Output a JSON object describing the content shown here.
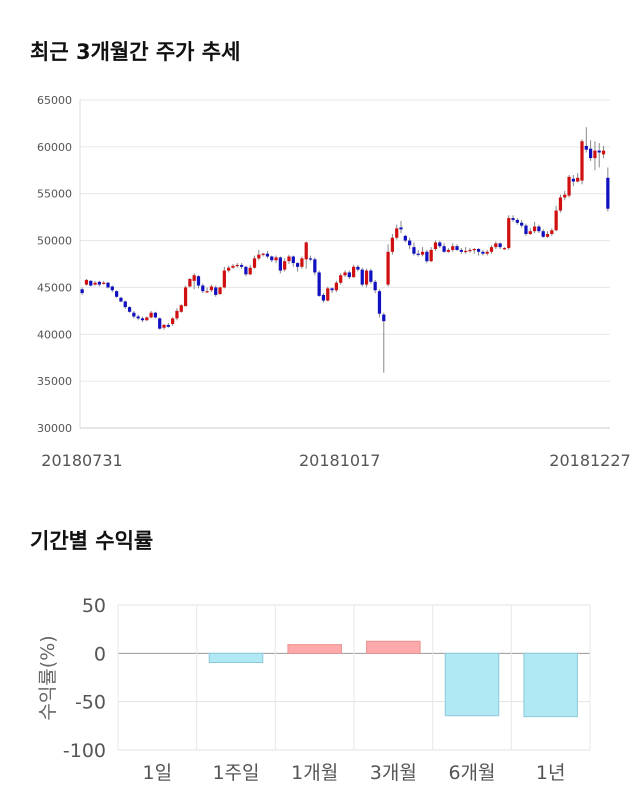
{
  "sections": {
    "price_title": "최근 3개월간 주가 추세",
    "returns_title": "기간별 수익률"
  },
  "chart_data": [
    {
      "type": "candlestick",
      "title": "최근 3개월간 주가 추세",
      "ylim": [
        30000,
        65000
      ],
      "y_ticks": [
        "65000",
        "60000",
        "55000",
        "50000",
        "45000",
        "40000",
        "35000",
        "30000"
      ],
      "x_tick_labels": [
        "20180731",
        "20181017",
        "20181227"
      ],
      "grid": true,
      "colors": {
        "up": "#d01010",
        "down": "#1010c0",
        "wick": "#888888"
      },
      "candles": [
        [
          44800,
          44400,
          45000,
          44200
        ],
        [
          45300,
          45800,
          45900,
          45200
        ],
        [
          45700,
          45200,
          45800,
          45100
        ],
        [
          45300,
          45500,
          45700,
          45200
        ],
        [
          45600,
          45300,
          45700,
          45100
        ],
        [
          45400,
          45500,
          45700,
          45300
        ],
        [
          45500,
          45000,
          45600,
          44900
        ],
        [
          45100,
          44700,
          45200,
          44500
        ],
        [
          44600,
          44000,
          44700,
          43900
        ],
        [
          43900,
          43500,
          44000,
          43400
        ],
        [
          43500,
          42900,
          43600,
          42700
        ],
        [
          42900,
          42400,
          43000,
          42300
        ],
        [
          42300,
          41900,
          42500,
          41700
        ],
        [
          41900,
          41700,
          42100,
          41500
        ],
        [
          41700,
          41500,
          41900,
          41300
        ],
        [
          41500,
          41800,
          41900,
          41400
        ],
        [
          41800,
          42300,
          42500,
          41700
        ],
        [
          42300,
          41800,
          42400,
          41700
        ],
        [
          41700,
          40600,
          41800,
          40500
        ],
        [
          40700,
          41000,
          41100,
          40500
        ],
        [
          41000,
          40800,
          41200,
          40700
        ],
        [
          41100,
          41700,
          41800,
          40900
        ],
        [
          41700,
          42500,
          42800,
          41500
        ],
        [
          42400,
          43100,
          43200,
          42300
        ],
        [
          43000,
          45000,
          45200,
          43000
        ],
        [
          45100,
          45900,
          46000,
          45000
        ],
        [
          45700,
          46300,
          46500,
          44800
        ],
        [
          46200,
          45200,
          46300,
          44900
        ],
        [
          45200,
          44600,
          45400,
          44400
        ],
        [
          44600,
          44600,
          45000,
          44400
        ],
        [
          44700,
          45100,
          45300,
          44500
        ],
        [
          45000,
          44200,
          45200,
          44000
        ],
        [
          44300,
          45000,
          45100,
          44200
        ],
        [
          45000,
          46800,
          47200,
          44900
        ],
        [
          46800,
          47100,
          47300,
          46600
        ],
        [
          47100,
          47300,
          47500,
          47000
        ],
        [
          47300,
          47400,
          47600,
          47100
        ],
        [
          47400,
          47200,
          47600,
          47000
        ],
        [
          47200,
          46400,
          47300,
          46200
        ],
        [
          46400,
          47100,
          47400,
          46300
        ],
        [
          47100,
          48100,
          48400,
          47000
        ],
        [
          48100,
          48500,
          49000,
          47900
        ],
        [
          48500,
          48600,
          48700,
          48300
        ],
        [
          48600,
          48300,
          48900,
          48100
        ],
        [
          48300,
          47900,
          48400,
          47700
        ],
        [
          47900,
          48200,
          48400,
          47600
        ],
        [
          48200,
          46800,
          48300,
          46500
        ],
        [
          46900,
          47800,
          48100,
          46700
        ],
        [
          47800,
          48300,
          48500,
          47500
        ],
        [
          48300,
          47600,
          48400,
          47200
        ],
        [
          47600,
          47200,
          47700,
          46700
        ],
        [
          47200,
          48100,
          48300,
          47000
        ],
        [
          48000,
          49800,
          49900,
          47000
        ],
        [
          48100,
          48000,
          48400,
          47800
        ],
        [
          48000,
          46600,
          48200,
          46300
        ],
        [
          46600,
          44100,
          46800,
          44000
        ],
        [
          44200,
          43600,
          44400,
          43400
        ],
        [
          43600,
          44900,
          45100,
          43500
        ],
        [
          44900,
          44700,
          45000,
          44400
        ],
        [
          44700,
          45500,
          45700,
          44500
        ],
        [
          45500,
          46300,
          46500,
          45300
        ],
        [
          46300,
          46600,
          46800,
          46100
        ],
        [
          46600,
          46100,
          46800,
          45900
        ],
        [
          46100,
          47200,
          47400,
          46000
        ],
        [
          47200,
          46900,
          47400,
          46700
        ],
        [
          46900,
          45300,
          47100,
          45100
        ],
        [
          45300,
          46800,
          47000,
          45000
        ],
        [
          46800,
          45600,
          47000,
          45400
        ],
        [
          45600,
          44700,
          45800,
          44400
        ],
        [
          44600,
          42200,
          44800,
          41800
        ],
        [
          42100,
          41400,
          42300,
          35900
        ],
        [
          45300,
          48800,
          49600,
          45100
        ],
        [
          48800,
          50300,
          50700,
          48500
        ],
        [
          50300,
          51300,
          51700,
          50100
        ],
        [
          51400,
          51200,
          52100,
          50800
        ],
        [
          50500,
          50000,
          50600,
          49800
        ],
        [
          50000,
          49500,
          50300,
          49100
        ],
        [
          49300,
          48600,
          49800,
          48400
        ],
        [
          48600,
          48500,
          49000,
          48300
        ],
        [
          48500,
          48800,
          49300,
          48300
        ],
        [
          48800,
          47800,
          49000,
          47600
        ],
        [
          47800,
          49000,
          49300,
          47700
        ],
        [
          49100,
          49800,
          50000,
          48900
        ],
        [
          49800,
          49400,
          50000,
          49200
        ],
        [
          49400,
          48800,
          49700,
          48700
        ],
        [
          48800,
          49000,
          49200,
          48700
        ],
        [
          49000,
          49400,
          49700,
          48800
        ],
        [
          49400,
          49000,
          49600,
          48900
        ],
        [
          49000,
          48800,
          49200,
          48600
        ],
        [
          48800,
          48900,
          49300,
          48600
        ],
        [
          48900,
          49000,
          49200,
          48700
        ],
        [
          49000,
          49100,
          49200,
          48600
        ],
        [
          49100,
          48800,
          49200,
          48400
        ],
        [
          48800,
          48600,
          49000,
          48400
        ],
        [
          48600,
          48800,
          49000,
          48400
        ],
        [
          48800,
          49300,
          49500,
          48600
        ],
        [
          49300,
          49700,
          49900,
          49100
        ],
        [
          49700,
          49300,
          49800,
          49100
        ],
        [
          49100,
          49200,
          49300,
          49000
        ],
        [
          49200,
          52400,
          52700,
          49000
        ],
        [
          52400,
          52200,
          52700,
          52000
        ],
        [
          52200,
          51900,
          52400,
          51700
        ],
        [
          51900,
          51600,
          52200,
          51400
        ],
        [
          51600,
          50700,
          51800,
          50500
        ],
        [
          50700,
          51000,
          51300,
          50600
        ],
        [
          51000,
          51500,
          52000,
          50800
        ],
        [
          51500,
          51000,
          51700,
          50800
        ],
        [
          51000,
          50400,
          51200,
          50300
        ],
        [
          50400,
          50700,
          51000,
          50300
        ],
        [
          50700,
          51100,
          51300,
          50500
        ],
        [
          51100,
          53200,
          53700,
          51000
        ],
        [
          53200,
          54600,
          54900,
          53000
        ],
        [
          54600,
          54900,
          55300,
          54300
        ],
        [
          54800,
          56800,
          57000,
          54600
        ],
        [
          56600,
          56300,
          57000,
          55800
        ],
        [
          56300,
          56700,
          57200,
          56200
        ],
        [
          56400,
          60600,
          60800,
          56000
        ],
        [
          60100,
          59700,
          62100,
          59400
        ],
        [
          59800,
          58800,
          60700,
          58500
        ],
        [
          58800,
          59600,
          60600,
          57500
        ],
        [
          59600,
          59400,
          60400,
          57800
        ],
        [
          59200,
          59600,
          60100,
          58800
        ],
        [
          56700,
          53400,
          57800,
          53100
        ]
      ]
    },
    {
      "type": "bar",
      "title": "기간별 수익률",
      "ylabel": "수익률(%)",
      "ylim": [
        -100,
        50
      ],
      "y_ticks": [
        50,
        0,
        -50,
        -100
      ],
      "y_tick_labels": [
        "50",
        "0",
        "-50",
        "-100"
      ],
      "categories": [
        "1일",
        "1주일",
        "1개월",
        "3개월",
        "6개월",
        "1년"
      ],
      "values": [
        0,
        -9.5,
        9.0,
        12.5,
        -64.5,
        -65.5
      ],
      "grid": true,
      "colors": {
        "positive_fill": "#ffaaaa",
        "positive_stroke": "#e99090",
        "negative_fill": "#b0e8f4",
        "negative_stroke": "#8cc9d9"
      }
    }
  ]
}
